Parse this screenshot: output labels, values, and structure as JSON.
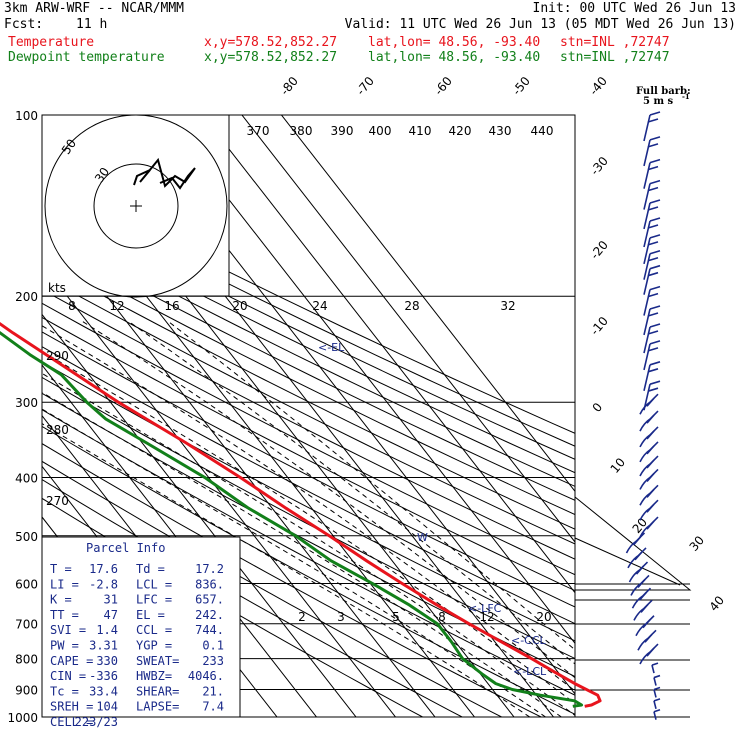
{
  "header": {
    "model": "3km ARW-WRF -- NCAR/MMM",
    "init": "Init: 00 UTC Wed 26 Jun 13",
    "fcst_label": "Fcst:",
    "fcst_value": "11 h",
    "valid": "Valid: 11 UTC Wed 26 Jun 13 (05 MDT Wed 26 Jun 13)",
    "temp_label": "Temperature",
    "dew_label": "Dewpoint temperature",
    "xy": "x,y=578.52,852.27",
    "latlon": "lat,lon= 48.56, -93.40",
    "stn": "stn=INL ,72747"
  },
  "barb_key": {
    "title": "Full barb:",
    "value": "5 m s",
    "exp": "-1"
  },
  "hodograph": {
    "units": "kts",
    "ring_labels": [
      "50",
      "30"
    ]
  },
  "parcel": {
    "title": "Parcel Info",
    "rows": [
      [
        "T  =",
        "17.6",
        "Td =",
        "17.2"
      ],
      [
        "LI =",
        "-2.8",
        "LCL =",
        "836."
      ],
      [
        "K  =",
        "31",
        "LFC =",
        "657."
      ],
      [
        "TT =",
        "47",
        "EL  =",
        "242."
      ],
      [
        "SVI =",
        "1.4",
        "CCL =",
        "744."
      ],
      [
        "PW =",
        "3.31",
        "YGP =",
        "0.1"
      ],
      [
        "CAPE =",
        "330",
        "SWEAT=",
        "233"
      ],
      [
        "CIN =",
        "-336",
        "HWBZ=",
        "4046."
      ],
      [
        "Tc =",
        "33.4",
        "SHEAR=",
        "21."
      ],
      [
        "SREH =",
        "104",
        "LAPSE=",
        "7.4"
      ],
      [
        "CELL =",
        "223/23",
        "",
        ""
      ]
    ]
  },
  "level_markers": {
    "el": "<-EL",
    "lfc": "<-LFC",
    "ccl": "<-CCL",
    "lcl": "<-LCL",
    "w": "W"
  },
  "colors": {
    "temperature": "#e8141d",
    "dewpoint": "#12801a",
    "annot": "#1a2a8a",
    "dry_adiabat": "#000000"
  },
  "chart_data": {
    "type": "line",
    "subtype": "skew-T log-p",
    "y_axis": "pressure (hPa)",
    "ylim": [
      1000,
      100
    ],
    "pressure_ticks": [
      100,
      200,
      300,
      400,
      500,
      600,
      700,
      800,
      900,
      1000
    ],
    "isotherm_labels": [
      "-80",
      "-70",
      "-60",
      "-50",
      "-40",
      "-30",
      "-20",
      "-10",
      "0",
      "10",
      "20",
      "30",
      "40"
    ],
    "theta_labels": [
      "370",
      "380",
      "390",
      "400",
      "410",
      "420",
      "430",
      "440"
    ],
    "theta_left_labels": [
      "290",
      "280",
      "270"
    ],
    "mixing_ratio_upper": [
      "8",
      "12",
      "16",
      "20",
      "24",
      "28",
      "32"
    ],
    "mixing_ratio_lower": [
      "2",
      "3",
      "5",
      "8",
      "12",
      "20"
    ],
    "series": [
      {
        "name": "Temperature",
        "points": [
          [
            960,
            20.0
          ],
          [
            955,
            22.0
          ],
          [
            940,
            25.0
          ],
          [
            920,
            25.5
          ],
          [
            880,
            22.0
          ],
          [
            840,
            19.0
          ],
          [
            800,
            16.0
          ],
          [
            760,
            12.5
          ],
          [
            700,
            7.0
          ],
          [
            650,
            2.5
          ],
          [
            600,
            -2.0
          ],
          [
            550,
            -6.5
          ],
          [
            500,
            -11.0
          ],
          [
            450,
            -16.5
          ],
          [
            400,
            -22.0
          ],
          [
            350,
            -29.0
          ],
          [
            300,
            -38.0
          ],
          [
            260,
            -45.0
          ],
          [
            230,
            -51.0
          ],
          [
            200,
            -57.0
          ],
          [
            185,
            -61.0
          ],
          [
            170,
            -58.0
          ],
          [
            150,
            -52.0
          ],
          [
            130,
            -47.0
          ],
          [
            115,
            -47.0
          ],
          [
            100,
            -49.0
          ]
        ]
      },
      {
        "name": "Dewpoint temperature",
        "points": [
          [
            960,
            17.0
          ],
          [
            955,
            19.5
          ],
          [
            940,
            18.5
          ],
          [
            920,
            11.0
          ],
          [
            900,
            5.0
          ],
          [
            880,
            2.0
          ],
          [
            850,
            0.5
          ],
          [
            800,
            -1.5
          ],
          [
            750,
            -1.0
          ],
          [
            700,
            -1.0
          ],
          [
            650,
            -4.5
          ],
          [
            600,
            -9.5
          ],
          [
            550,
            -15.5
          ],
          [
            500,
            -19.5
          ],
          [
            450,
            -26.0
          ],
          [
            400,
            -31.0
          ],
          [
            350,
            -39.0
          ],
          [
            320,
            -44.5
          ],
          [
            300,
            -46.0
          ],
          [
            270,
            -47.0
          ],
          [
            250,
            -51.0
          ],
          [
            220,
            -56.0
          ],
          [
            200,
            -63.0
          ],
          [
            185,
            -67.0
          ],
          [
            170,
            -68.0
          ],
          [
            150,
            -67.0
          ],
          [
            140,
            -69.0
          ],
          [
            120,
            -74.0
          ],
          [
            100,
            -76.0
          ]
        ]
      }
    ],
    "wind_barbs_side": "right"
  }
}
